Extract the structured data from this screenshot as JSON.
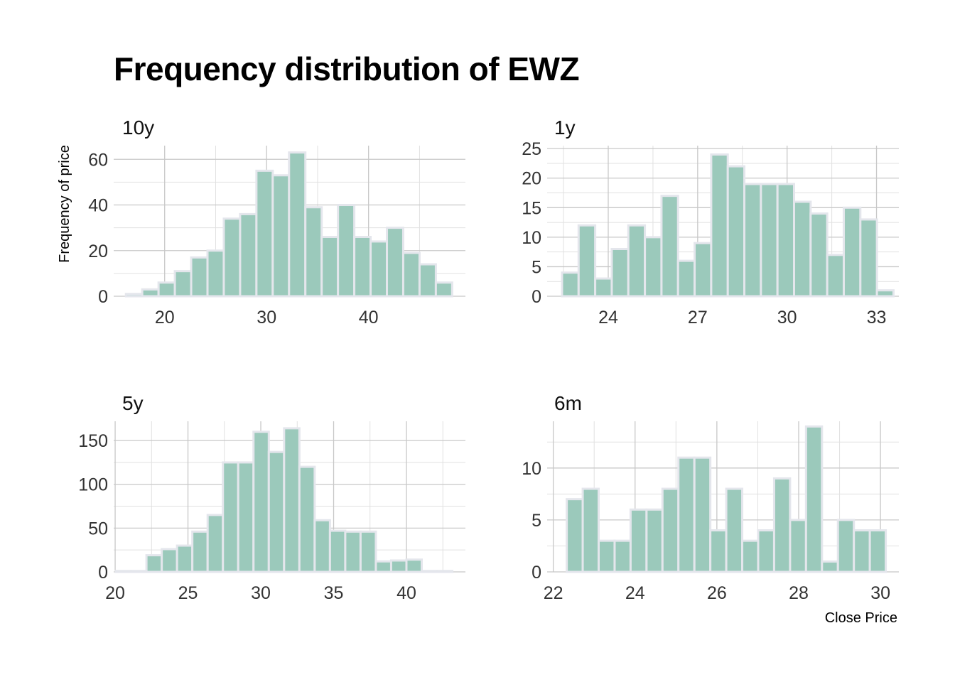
{
  "title": "Frequency distribution of EWZ",
  "chart_data": {
    "type": "bar",
    "title": "Frequency distribution of EWZ",
    "ylabel": "Frequency of price",
    "xlabel": "Close Price",
    "bar_fill": "#9bc9bb",
    "bar_edge": "#e4e6ec",
    "grid": true,
    "panels": [
      {
        "name": "10y",
        "xlim": [
          15,
          49.5
        ],
        "ylim": [
          0,
          66
        ],
        "xticks": [
          20,
          30,
          40
        ],
        "yticks": [
          0,
          20,
          40,
          60
        ],
        "bin_width": 1.6,
        "bin_starts": [
          16.2,
          17.8,
          19.4,
          21.0,
          22.6,
          24.2,
          25.8,
          27.4,
          29.0,
          30.6,
          32.2,
          33.8,
          35.4,
          37.0,
          38.6,
          40.2,
          41.8,
          43.4,
          45.0,
          46.6
        ],
        "values": [
          1,
          3,
          6,
          11,
          17,
          20,
          34,
          36,
          55,
          53,
          63,
          39,
          26,
          40,
          26,
          24,
          30,
          19,
          14,
          6
        ]
      },
      {
        "name": "1y",
        "xlim": [
          21.95,
          33.75
        ],
        "ylim": [
          0,
          25.5
        ],
        "xticks": [
          24,
          27,
          30,
          33
        ],
        "yticks": [
          0,
          5,
          10,
          15,
          20,
          25
        ],
        "bin_width": 0.556,
        "bin_starts": [
          22.45,
          23.006,
          23.562,
          24.118,
          24.674,
          25.23,
          25.786,
          26.342,
          26.898,
          27.454,
          28.01,
          28.566,
          29.122,
          29.678,
          30.234,
          30.79,
          31.346,
          31.902,
          32.458,
          33.014
        ],
        "values": [
          4,
          12,
          3,
          8,
          12,
          10,
          17,
          6,
          9,
          24,
          22,
          19,
          19,
          19,
          16,
          14,
          7,
          15,
          13,
          1
        ]
      },
      {
        "name": "5y",
        "xlim": [
          19.9,
          44.05
        ],
        "ylim": [
          0,
          172
        ],
        "xticks": [
          20,
          25,
          30,
          35,
          40
        ],
        "yticks": [
          0,
          50,
          100,
          150
        ],
        "bin_width": 1.05,
        "bin_starts": [
          20.05,
          21.1,
          22.15,
          23.2,
          24.25,
          25.3,
          26.35,
          27.4,
          28.45,
          29.5,
          30.55,
          31.6,
          32.65,
          33.7,
          34.75,
          35.8,
          36.85,
          37.9,
          38.95,
          40.0,
          41.05,
          42.1
        ],
        "values": [
          1,
          1,
          19,
          26,
          30,
          46,
          65,
          125,
          125,
          160,
          137,
          164,
          120,
          59,
          47,
          46,
          46,
          12,
          13,
          14,
          1,
          1
        ]
      },
      {
        "name": "6m",
        "xlim": [
          21.85,
          30.45
        ],
        "ylim": [
          0,
          14.5
        ],
        "xticks": [
          22,
          24,
          26,
          28,
          30
        ],
        "yticks": [
          0,
          5,
          10
        ],
        "bin_width": 0.39,
        "bin_starts": [
          22.33,
          22.72,
          23.11,
          23.5,
          23.89,
          24.28,
          24.67,
          25.06,
          25.45,
          25.84,
          26.23,
          26.62,
          27.01,
          27.4,
          27.79,
          28.18,
          28.57,
          28.96,
          29.35,
          29.74
        ],
        "values": [
          7,
          8,
          3,
          3,
          6,
          6,
          8,
          11,
          11,
          4,
          8,
          3,
          4,
          9,
          5,
          14,
          1,
          5,
          4,
          4
        ]
      }
    ]
  }
}
